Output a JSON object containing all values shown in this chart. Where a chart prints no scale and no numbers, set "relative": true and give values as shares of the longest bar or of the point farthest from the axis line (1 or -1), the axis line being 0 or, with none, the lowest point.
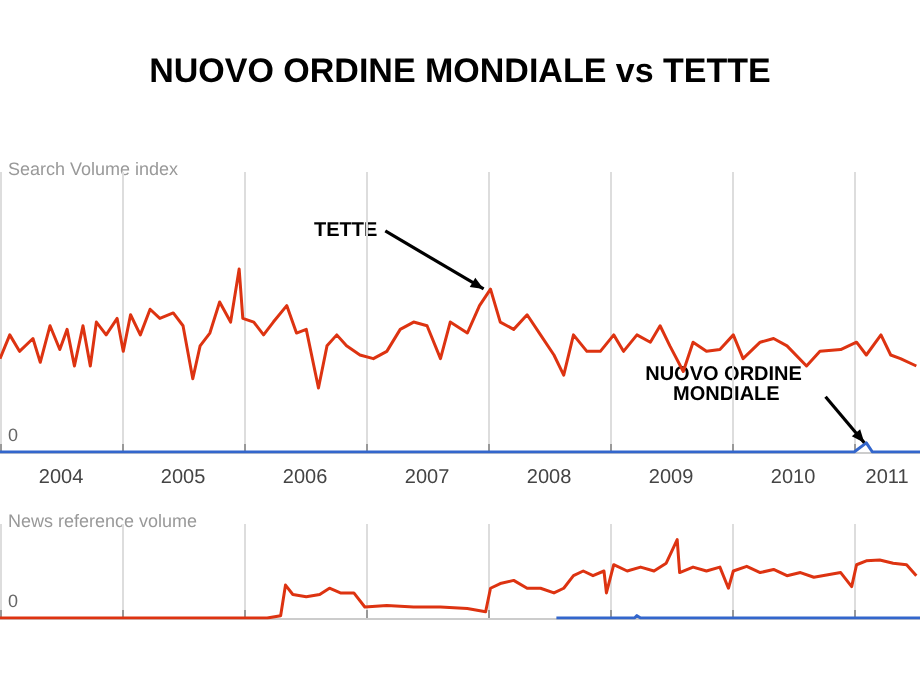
{
  "chart_data": [
    {
      "type": "line",
      "title": "NUOVO ORDINE MONDIALE vs TETTE",
      "ylabel": "Search Volume index",
      "relative": true,
      "grid": "x",
      "tick_labels": "x",
      "xlim": [
        2004,
        2011.54
      ],
      "xticks": [
        {
          "value": 2004,
          "label": null
        },
        {
          "value": 2004.5,
          "label": "2004"
        },
        {
          "value": 2005,
          "label": null
        },
        {
          "value": 2005.5,
          "label": "2005"
        },
        {
          "value": 2006,
          "label": null
        },
        {
          "value": 2006.5,
          "label": "2006"
        },
        {
          "value": 2007,
          "label": null
        },
        {
          "value": 2007.5,
          "label": "2007"
        },
        {
          "value": 2008,
          "label": null
        },
        {
          "value": 2008.5,
          "label": "2008"
        },
        {
          "value": 2009,
          "label": null
        },
        {
          "value": 2009.5,
          "label": "2009"
        },
        {
          "value": 2010,
          "label": null
        },
        {
          "value": 2010.5,
          "label": "2010"
        },
        {
          "value": 2011,
          "label": null
        },
        {
          "value": 2011.27,
          "label": "2011"
        }
      ],
      "annotations": [
        "0",
        {
          "text": "TETTE",
          "x": 2007.98,
          "y": 0.88
        },
        {
          "text": "NUOVO ORDINE MONDIALE",
          "x": 2011.1,
          "y": 0.04
        }
      ],
      "series": [
        {
          "color": "#dd3311",
          "x": [
            2004.0,
            2004.08,
            2004.16,
            2004.27,
            2004.33,
            2004.41,
            2004.49,
            2004.55,
            2004.61,
            2004.68,
            2004.74,
            2004.79,
            2004.87,
            2004.96,
            2005.01,
            2005.07,
            2005.15,
            2005.23,
            2005.31,
            2005.42,
            2005.5,
            2005.58,
            2005.64,
            2005.72,
            2005.8,
            2005.89,
            2005.96,
            2005.99,
            2006.08,
            2006.16,
            2006.24,
            2006.35,
            2006.43,
            2006.51,
            2006.61,
            2006.68,
            2006.76,
            2006.84,
            2006.95,
            2007.06,
            2007.17,
            2007.28,
            2007.39,
            2007.5,
            2007.61,
            2007.69,
            2007.83,
            2007.93,
            2008.02,
            2008.1,
            2008.21,
            2008.32,
            2008.43,
            2008.54,
            2008.62,
            2008.7,
            2008.81,
            2008.92,
            2009.03,
            2009.11,
            2009.22,
            2009.33,
            2009.41,
            2009.49,
            2009.6,
            2009.68,
            2009.79,
            2009.9,
            2010.01,
            2010.09,
            2010.23,
            2010.34,
            2010.45,
            2010.61,
            2010.72,
            2010.89,
            2011.02,
            2011.1,
            2011.22,
            2011.3,
            2011.38,
            2011.51
          ],
          "values": [
            0.51,
            0.64,
            0.55,
            0.62,
            0.49,
            0.69,
            0.56,
            0.67,
            0.47,
            0.69,
            0.47,
            0.71,
            0.64,
            0.73,
            0.55,
            0.75,
            0.64,
            0.78,
            0.73,
            0.76,
            0.69,
            0.4,
            0.58,
            0.65,
            0.82,
            0.71,
            1,
            0.73,
            0.71,
            0.64,
            0.71,
            0.8,
            0.65,
            0.67,
            0.35,
            0.58,
            0.64,
            0.58,
            0.53,
            0.51,
            0.55,
            0.67,
            0.71,
            0.69,
            0.51,
            0.71,
            0.65,
            0.8,
            0.89,
            0.71,
            0.67,
            0.75,
            0.64,
            0.53,
            0.42,
            0.64,
            0.55,
            0.55,
            0.64,
            0.55,
            0.64,
            0.6,
            0.69,
            0.58,
            0.44,
            0.6,
            0.55,
            0.56,
            0.64,
            0.51,
            0.6,
            0.62,
            0.58,
            0.47,
            0.55,
            0.56,
            0.6,
            0.53,
            0.64,
            0.53,
            0.51,
            0.47
          ]
        },
        {
          "color": "#3366cc",
          "x": [
            2004,
            2011.0,
            2011.1,
            2011.15,
            2011.54
          ],
          "values": [
            0,
            0,
            0.05,
            0,
            0
          ]
        }
      ]
    },
    {
      "type": "line",
      "ylabel": "News reference volume",
      "relative": true,
      "grid": "x",
      "tick_labels": false,
      "xlim": [
        2004,
        2011.54
      ],
      "xticks": [
        {
          "value": 2004,
          "label": null
        },
        {
          "value": 2005,
          "label": null
        },
        {
          "value": 2006,
          "label": null
        },
        {
          "value": 2007,
          "label": null
        },
        {
          "value": 2008,
          "label": null
        },
        {
          "value": 2009,
          "label": null
        },
        {
          "value": 2010,
          "label": null
        },
        {
          "value": 2011,
          "label": null
        }
      ],
      "annotations": [
        "0"
      ],
      "series": [
        {
          "color": "#dd3311",
          "x": [
            2004,
            2006.19,
            2006.3,
            2006.34,
            2006.4,
            2006.51,
            2006.62,
            2006.7,
            2006.79,
            2006.9,
            2006.99,
            2007.17,
            2007.39,
            2007.61,
            2007.83,
            2007.98,
            2008.02,
            2008.1,
            2008.21,
            2008.32,
            2008.43,
            2008.54,
            2008.62,
            2008.7,
            2008.78,
            2008.86,
            2008.95,
            2008.97,
            2009.03,
            2009.14,
            2009.25,
            2009.36,
            2009.46,
            2009.55,
            2009.57,
            2009.68,
            2009.79,
            2009.9,
            2009.97,
            2010.01,
            2010.12,
            2010.23,
            2010.34,
            2010.45,
            2010.56,
            2010.67,
            2010.89,
            2010.98,
            2011.02,
            2011.1,
            2011.21,
            2011.32,
            2011.43,
            2011.51
          ],
          "values": [
            0,
            0,
            0.03,
            0.42,
            0.3,
            0.27,
            0.3,
            0.38,
            0.32,
            0.32,
            0.14,
            0.16,
            0.14,
            0.14,
            0.12,
            0.08,
            0.38,
            0.44,
            0.48,
            0.38,
            0.38,
            0.32,
            0.38,
            0.54,
            0.6,
            0.54,
            0.6,
            0.32,
            0.68,
            0.6,
            0.65,
            0.6,
            0.7,
            1,
            0.58,
            0.65,
            0.6,
            0.65,
            0.38,
            0.6,
            0.66,
            0.58,
            0.62,
            0.54,
            0.58,
            0.52,
            0.58,
            0.4,
            0.68,
            0.73,
            0.74,
            0.7,
            0.68,
            0.54
          ]
        },
        {
          "color": "#3366cc",
          "x": [
            2008.56,
            2009.2,
            2009.22,
            2009.25,
            2011.54
          ],
          "values": [
            0,
            0,
            0.03,
            0,
            0
          ]
        }
      ]
    }
  ]
}
